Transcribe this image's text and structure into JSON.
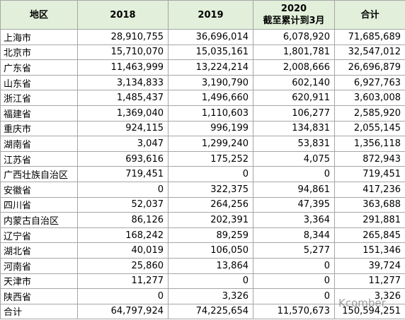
{
  "table": {
    "columns": [
      {
        "label": "地区"
      },
      {
        "label": "2018"
      },
      {
        "label": "2019"
      },
      {
        "label": "2020",
        "sublabel": "截至累计到3月"
      },
      {
        "label": "合计"
      }
    ],
    "rows": [
      [
        "上海市",
        "28,910,755",
        "36,696,014",
        "6,078,920",
        "71,685,689"
      ],
      [
        "北京市",
        "15,710,070",
        "15,035,161",
        "1,801,781",
        "32,547,012"
      ],
      [
        "广东省",
        "11,463,999",
        "13,224,214",
        "2,008,666",
        "26,696,879"
      ],
      [
        "山东省",
        "3,134,833",
        "3,190,790",
        "602,140",
        "6,927,763"
      ],
      [
        "浙江省",
        "1,485,437",
        "1,496,660",
        "620,911",
        "3,603,008"
      ],
      [
        "福建省",
        "1,369,040",
        "1,110,603",
        "106,277",
        "2,585,920"
      ],
      [
        "重庆市",
        "924,115",
        "996,199",
        "134,831",
        "2,055,145"
      ],
      [
        "湖南省",
        "3,047",
        "1,299,240",
        "53,831",
        "1,356,118"
      ],
      [
        "江苏省",
        "693,616",
        "175,252",
        "4,075",
        "872,943"
      ],
      [
        "广西壮族自治区",
        "719,451",
        "0",
        "0",
        "719,451"
      ],
      [
        "安徽省",
        "0",
        "322,375",
        "94,861",
        "417,236"
      ],
      [
        "四川省",
        "52,037",
        "264,256",
        "47,395",
        "363,688"
      ],
      [
        "内蒙古自治区",
        "86,126",
        "202,391",
        "3,364",
        "291,881"
      ],
      [
        "辽宁省",
        "168,242",
        "89,259",
        "8,344",
        "265,845"
      ],
      [
        "湖北省",
        "40,019",
        "106,050",
        "5,277",
        "151,346"
      ],
      [
        "河南省",
        "25,860",
        "13,864",
        "0",
        "39,724"
      ],
      [
        "天津市",
        "11,277",
        "0",
        "0",
        "11,277"
      ],
      [
        "陕西省",
        "0",
        "3,326",
        "0",
        "3,326"
      ],
      [
        "合计",
        "64,797,924",
        "74,225,654",
        "11,570,673",
        "150,594,251"
      ]
    ]
  },
  "watermark": "Kcomber"
}
